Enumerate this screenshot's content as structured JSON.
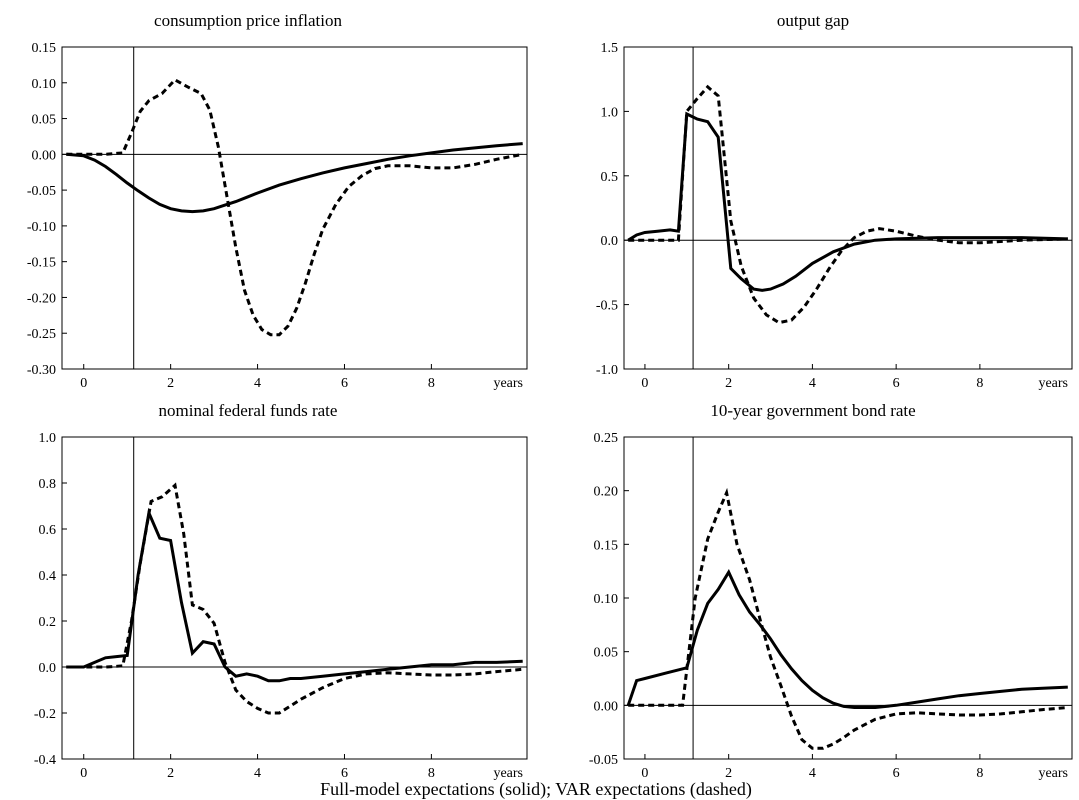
{
  "figure": {
    "caption": "Full-model expectations (solid); VAR expectations (dashed)",
    "colors": {
      "line": "#000000",
      "background": "#ffffff"
    }
  },
  "chart_data": [
    {
      "type": "line",
      "title": "consumption price inflation",
      "xlabel": "years",
      "ylabel": "",
      "xlim": [
        -0.5,
        10.2
      ],
      "ylim": [
        -0.3,
        0.15
      ],
      "xticks": [
        0,
        2,
        4,
        6,
        8
      ],
      "yticks": [
        -0.3,
        -0.25,
        -0.2,
        -0.15,
        -0.1,
        -0.05,
        0.0,
        0.05,
        0.1,
        0.15
      ],
      "ytick_decimals": 2,
      "marker_x": 1.15,
      "zero_line": true,
      "series": [
        {
          "style": "solid",
          "x": [
            -0.4,
            0,
            0.25,
            0.5,
            0.75,
            1,
            1.25,
            1.5,
            1.75,
            2,
            2.25,
            2.5,
            2.75,
            3,
            3.25,
            3.5,
            3.75,
            4,
            4.5,
            5,
            5.5,
            6,
            6.5,
            7,
            7.5,
            8,
            8.5,
            9,
            9.5,
            10.1
          ],
          "y": [
            0,
            -0.002,
            -0.008,
            -0.017,
            -0.028,
            -0.04,
            -0.051,
            -0.061,
            -0.07,
            -0.076,
            -0.079,
            -0.08,
            -0.079,
            -0.076,
            -0.071,
            -0.066,
            -0.06,
            -0.054,
            -0.043,
            -0.034,
            -0.026,
            -0.019,
            -0.013,
            -0.007,
            -0.002,
            0.002,
            0.006,
            0.009,
            0.012,
            0.015
          ]
        },
        {
          "style": "dashed",
          "x": [
            -0.4,
            0,
            0.5,
            0.9,
            1.1,
            1.3,
            1.5,
            1.8,
            2.1,
            2.4,
            2.7,
            2.9,
            3.1,
            3.3,
            3.5,
            3.7,
            3.9,
            4.1,
            4.3,
            4.5,
            4.7,
            4.9,
            5.1,
            5.3,
            5.5,
            5.8,
            6.1,
            6.4,
            6.7,
            7,
            7.5,
            8,
            8.5,
            9,
            9.5,
            10.1
          ],
          "y": [
            0,
            0,
            0,
            0.002,
            0.03,
            0.06,
            0.075,
            0.085,
            0.104,
            0.094,
            0.085,
            0.062,
            0.01,
            -0.06,
            -0.13,
            -0.19,
            -0.225,
            -0.245,
            -0.252,
            -0.252,
            -0.24,
            -0.215,
            -0.18,
            -0.14,
            -0.105,
            -0.07,
            -0.045,
            -0.03,
            -0.02,
            -0.016,
            -0.016,
            -0.019,
            -0.019,
            -0.014,
            -0.007,
            0
          ]
        }
      ]
    },
    {
      "type": "line",
      "title": "output gap",
      "xlabel": "years",
      "ylabel": "",
      "xlim": [
        -0.5,
        10.2
      ],
      "ylim": [
        -1.0,
        1.5
      ],
      "xticks": [
        0,
        2,
        4,
        6,
        8
      ],
      "yticks": [
        -1.0,
        -0.5,
        0.0,
        0.5,
        1.0,
        1.5
      ],
      "ytick_decimals": 1,
      "marker_x": 1.15,
      "zero_line": true,
      "series": [
        {
          "style": "solid",
          "x": [
            -0.4,
            -0.2,
            0,
            0.3,
            0.6,
            0.8,
            1,
            1.25,
            1.5,
            1.75,
            2.05,
            2.3,
            2.6,
            2.8,
            3,
            3.3,
            3.6,
            4,
            4.5,
            5,
            5.5,
            6,
            7,
            8,
            9,
            10.1
          ],
          "y": [
            0,
            0.04,
            0.06,
            0.07,
            0.08,
            0.07,
            0.98,
            0.94,
            0.92,
            0.8,
            -0.22,
            -0.3,
            -0.38,
            -0.39,
            -0.38,
            -0.34,
            -0.28,
            -0.18,
            -0.09,
            -0.03,
            0,
            0.01,
            0.02,
            0.02,
            0.02,
            0.01
          ]
        },
        {
          "style": "dashed",
          "x": [
            -0.4,
            0,
            0.5,
            0.8,
            1,
            1.25,
            1.5,
            1.75,
            1.85,
            2.05,
            2.3,
            2.6,
            2.9,
            3.2,
            3.5,
            3.8,
            4.1,
            4.4,
            4.7,
            5,
            5.3,
            5.6,
            6,
            6.5,
            7,
            7.5,
            8,
            9,
            10.1
          ],
          "y": [
            0,
            0,
            0,
            0,
            1.0,
            1.1,
            1.19,
            1.12,
            0.8,
            0.15,
            -0.2,
            -0.45,
            -0.58,
            -0.64,
            -0.62,
            -0.52,
            -0.38,
            -0.22,
            -0.08,
            0.02,
            0.07,
            0.09,
            0.07,
            0.03,
            0,
            -0.02,
            -0.02,
            0,
            0.01
          ]
        }
      ]
    },
    {
      "type": "line",
      "title": "nominal federal funds rate",
      "xlabel": "years",
      "ylabel": "",
      "xlim": [
        -0.5,
        10.2
      ],
      "ylim": [
        -0.4,
        1.0
      ],
      "xticks": [
        0,
        2,
        4,
        6,
        8
      ],
      "yticks": [
        -0.4,
        -0.2,
        0.0,
        0.2,
        0.4,
        0.6,
        0.8,
        1.0
      ],
      "ytick_decimals": 1,
      "marker_x": 1.15,
      "zero_line": true,
      "series": [
        {
          "style": "solid",
          "x": [
            -0.4,
            0,
            0.25,
            0.5,
            0.75,
            1,
            1.25,
            1.5,
            1.75,
            2,
            2.25,
            2.5,
            2.75,
            3,
            3.25,
            3.5,
            3.75,
            4,
            4.25,
            4.5,
            4.75,
            5,
            5.5,
            6,
            6.5,
            7,
            7.5,
            8,
            8.5,
            9,
            9.5,
            10.1
          ],
          "y": [
            0,
            0,
            0.02,
            0.04,
            0.045,
            0.05,
            0.4,
            0.67,
            0.56,
            0.55,
            0.28,
            0.06,
            0.11,
            0.1,
            0,
            -0.04,
            -0.03,
            -0.04,
            -0.06,
            -0.06,
            -0.05,
            -0.05,
            -0.04,
            -0.03,
            -0.02,
            -0.01,
            0,
            0.01,
            0.01,
            0.02,
            0.02,
            0.025
          ]
        },
        {
          "style": "dashed",
          "x": [
            -0.4,
            0,
            0.5,
            0.9,
            1.1,
            1.3,
            1.55,
            1.8,
            2.1,
            2.3,
            2.5,
            2.75,
            3,
            3.25,
            3.5,
            3.75,
            4,
            4.25,
            4.5,
            4.75,
            5,
            5.5,
            6,
            6.5,
            7,
            7.5,
            8,
            8.5,
            9,
            9.5,
            10.1
          ],
          "y": [
            0,
            0,
            0,
            0.005,
            0.2,
            0.45,
            0.72,
            0.74,
            0.79,
            0.58,
            0.27,
            0.25,
            0.19,
            0.02,
            -0.1,
            -0.15,
            -0.18,
            -0.2,
            -0.2,
            -0.17,
            -0.14,
            -0.09,
            -0.05,
            -0.03,
            -0.025,
            -0.03,
            -0.035,
            -0.035,
            -0.03,
            -0.02,
            -0.01
          ]
        }
      ]
    },
    {
      "type": "line",
      "title": "10-year government bond rate",
      "xlabel": "years",
      "ylabel": "",
      "xlim": [
        -0.5,
        10.2
      ],
      "ylim": [
        -0.05,
        0.25
      ],
      "xticks": [
        0,
        2,
        4,
        6,
        8
      ],
      "yticks": [
        -0.05,
        0.0,
        0.05,
        0.1,
        0.15,
        0.2,
        0.25
      ],
      "ytick_decimals": 2,
      "marker_x": 1.15,
      "zero_line": true,
      "series": [
        {
          "style": "solid",
          "x": [
            -0.4,
            -0.2,
            0,
            0.5,
            1,
            1.25,
            1.5,
            1.75,
            2,
            2.25,
            2.5,
            2.75,
            3,
            3.25,
            3.5,
            3.75,
            4,
            4.25,
            4.5,
            4.75,
            5,
            5.5,
            6,
            6.5,
            7,
            7.5,
            8,
            8.5,
            9,
            9.5,
            10.1
          ],
          "y": [
            0,
            0.023,
            0.025,
            0.03,
            0.035,
            0.07,
            0.095,
            0.108,
            0.124,
            0.103,
            0.087,
            0.075,
            0.062,
            0.047,
            0.034,
            0.023,
            0.014,
            0.007,
            0.002,
            -0.001,
            -0.002,
            -0.002,
            0,
            0.003,
            0.006,
            0.009,
            0.011,
            0.013,
            0.015,
            0.016,
            0.017
          ]
        },
        {
          "style": "dashed",
          "x": [
            -0.4,
            0,
            0.5,
            0.9,
            1.2,
            1.5,
            1.75,
            1.95,
            2.2,
            2.5,
            2.75,
            3,
            3.25,
            3.5,
            3.75,
            4,
            4.25,
            4.5,
            4.75,
            5,
            5.5,
            6,
            6.5,
            7,
            7.5,
            8,
            8.5,
            9,
            9.5,
            10.1
          ],
          "y": [
            0,
            0,
            0,
            0,
            0.1,
            0.155,
            0.18,
            0.198,
            0.15,
            0.117,
            0.08,
            0.045,
            0.018,
            -0.01,
            -0.032,
            -0.04,
            -0.04,
            -0.036,
            -0.03,
            -0.023,
            -0.013,
            -0.008,
            -0.007,
            -0.008,
            -0.009,
            -0.009,
            -0.008,
            -0.006,
            -0.004,
            -0.002
          ]
        }
      ]
    }
  ]
}
